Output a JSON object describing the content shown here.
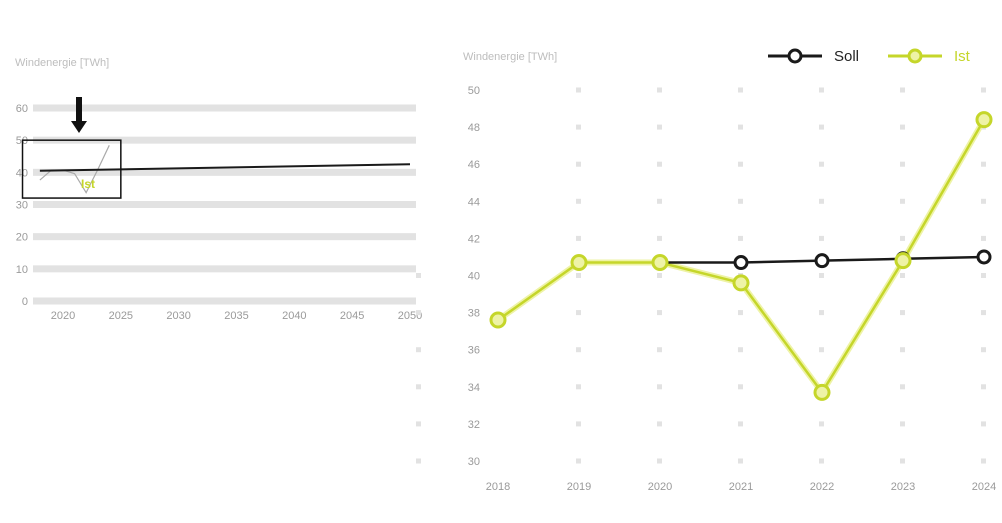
{
  "colors": {
    "soll": "#1a1a1a",
    "ist": "#c5d62a",
    "ist_light": "#eef3a6",
    "grid": "#e2e2e2",
    "axis_text": "#9a9a9a"
  },
  "chart_data": [
    {
      "type": "line",
      "title": "Windenergie [TWh]",
      "x": [
        2020,
        2025,
        2030,
        2035,
        2040,
        2045,
        2050
      ],
      "xlim": [
        2018,
        2050
      ],
      "ylim": [
        0,
        60
      ],
      "yticks": [
        0,
        10,
        20,
        30,
        40,
        50,
        60
      ],
      "grid": "horizontal bands",
      "series": [
        {
          "name": "Soll",
          "x": [
            2018,
            2050
          ],
          "values": [
            40.5,
            42.5
          ]
        },
        {
          "name": "Ist",
          "x": [
            2018,
            2019,
            2020,
            2021,
            2022,
            2023,
            2024
          ],
          "values": [
            37.6,
            40.7,
            40.7,
            39.6,
            33.7,
            40.8,
            48.4
          ]
        }
      ],
      "annotations": {
        "ist_label": "Ist",
        "zoom_box_x": [
          2016.5,
          2025
        ],
        "zoom_box_y": [
          32,
          50
        ],
        "arrow": "down"
      }
    },
    {
      "type": "line",
      "title": "Windenergie [TWh]",
      "categories": [
        "2018",
        "2019",
        "2020",
        "2021",
        "2022",
        "2023",
        "2024"
      ],
      "ylim": [
        30,
        50
      ],
      "yticks": [
        30,
        32,
        34,
        36,
        38,
        40,
        42,
        44,
        46,
        48,
        50
      ],
      "grid": "dotted",
      "legend": "top-right",
      "series": [
        {
          "name": "Soll",
          "values": [
            null,
            null,
            40.7,
            40.7,
            40.8,
            40.9,
            41.0
          ]
        },
        {
          "name": "Ist",
          "values": [
            37.6,
            40.7,
            40.7,
            39.6,
            33.7,
            40.8,
            48.4
          ]
        }
      ]
    }
  ]
}
